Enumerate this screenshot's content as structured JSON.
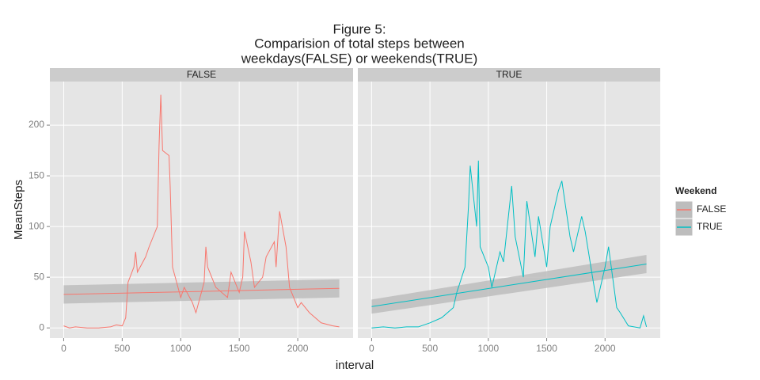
{
  "chart_data": [
    {
      "type": "line",
      "title": [
        "Figure 5:",
        "Comparision of total steps between",
        "weekdays(FALSE) or weekends(TRUE)"
      ],
      "x_label": "interval",
      "y_label": "MeanSteps",
      "legend_title": "Weekend",
      "facet": "FALSE",
      "xlim": [
        -118,
        2473
      ],
      "ylim": [
        -10,
        243
      ],
      "xticks": [
        0,
        500,
        1000,
        1500,
        2000
      ],
      "yticks": [
        0,
        50,
        100,
        150,
        200
      ],
      "grid": true,
      "x": [
        0,
        50,
        100,
        200,
        300,
        400,
        450,
        500,
        530,
        550,
        600,
        615,
        630,
        700,
        730,
        800,
        815,
        830,
        845,
        900,
        910,
        930,
        1000,
        1030,
        1100,
        1130,
        1200,
        1215,
        1230,
        1300,
        1400,
        1430,
        1500,
        1530,
        1545,
        1600,
        1630,
        1700,
        1730,
        1800,
        1815,
        1845,
        1900,
        1930,
        2000,
        2030,
        2100,
        2200,
        2300,
        2355
      ],
      "series": [
        {
          "name": "FALSE",
          "color": "#F8766D",
          "values": [
            2,
            0,
            1,
            0,
            0,
            1,
            3,
            2,
            10,
            45,
            60,
            75,
            55,
            70,
            80,
            100,
            180,
            230,
            175,
            170,
            140,
            60,
            30,
            40,
            25,
            15,
            45,
            80,
            60,
            40,
            30,
            55,
            35,
            50,
            95,
            65,
            40,
            50,
            70,
            85,
            60,
            115,
            80,
            40,
            20,
            25,
            15,
            5,
            2,
            1
          ]
        }
      ],
      "trend": {
        "x": [
          0,
          2355
        ],
        "values": [
          33,
          39
        ],
        "lower": [
          24,
          30
        ],
        "upper": [
          42,
          48
        ],
        "ribbon_color": "#bdbdbd"
      }
    },
    {
      "type": "line",
      "facet": "TRUE",
      "xlim": [
        -118,
        2473
      ],
      "ylim": [
        -10,
        243
      ],
      "xticks": [
        0,
        500,
        1000,
        1500,
        2000
      ],
      "yticks": [
        0,
        50,
        100,
        150,
        200
      ],
      "grid": true,
      "x": [
        0,
        100,
        200,
        300,
        400,
        500,
        600,
        700,
        730,
        800,
        830,
        845,
        900,
        915,
        930,
        1000,
        1030,
        1100,
        1130,
        1200,
        1230,
        1300,
        1330,
        1400,
        1430,
        1500,
        1530,
        1600,
        1630,
        1700,
        1730,
        1800,
        1830,
        1900,
        1930,
        2000,
        2030,
        2100,
        2130,
        2200,
        2300,
        2330,
        2355
      ],
      "series": [
        {
          "name": "TRUE",
          "color": "#00BFC4",
          "values": [
            0,
            1,
            0,
            1,
            1,
            5,
            10,
            20,
            35,
            60,
            120,
            160,
            100,
            165,
            80,
            60,
            40,
            75,
            65,
            140,
            90,
            50,
            125,
            70,
            110,
            60,
            100,
            135,
            145,
            90,
            75,
            110,
            95,
            45,
            25,
            60,
            80,
            20,
            15,
            2,
            0,
            12,
            1
          ]
        }
      ],
      "trend": {
        "x": [
          0,
          2355
        ],
        "values": [
          21,
          63
        ],
        "lower": [
          14,
          54
        ],
        "upper": [
          28,
          72
        ],
        "ribbon_color": "#bdbdbd"
      }
    }
  ]
}
